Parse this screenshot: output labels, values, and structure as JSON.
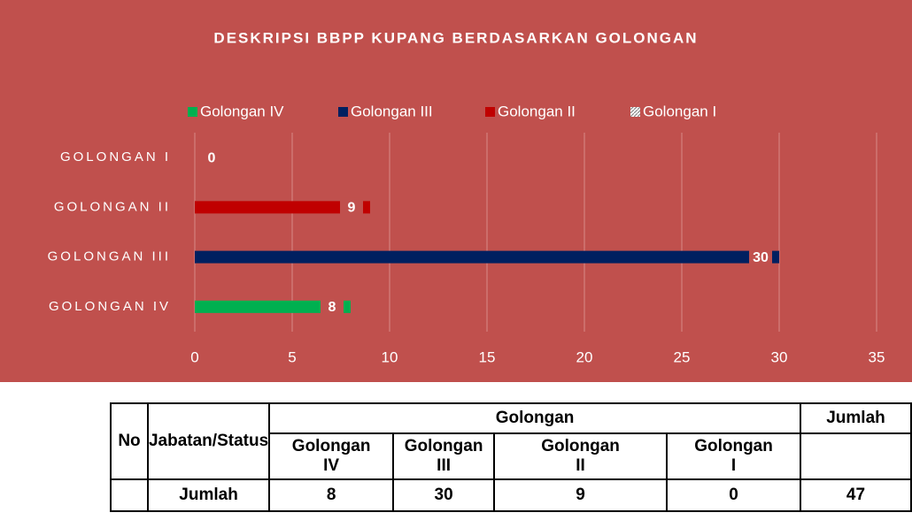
{
  "chart_data": {
    "type": "bar",
    "orientation": "horizontal",
    "title": "DESKRIPSI BBPP KUPANG BERDASARKAN GOLONGAN",
    "categories": [
      "GOLONGAN IV",
      "GOLONGAN III",
      "GOLONGAN II",
      "GOLONGAN I"
    ],
    "series": [
      {
        "name": "Golongan IV",
        "color": "#00b050",
        "values": [
          8,
          null,
          null,
          null
        ]
      },
      {
        "name": "Golongan III",
        "color": "#002060",
        "values": [
          null,
          30,
          null,
          null
        ]
      },
      {
        "name": "Golongan II",
        "color": "#c00000",
        "values": [
          null,
          null,
          9,
          null
        ]
      },
      {
        "name": "Golongan I",
        "color": "#d9d9d9",
        "pattern": true,
        "values": [
          null,
          null,
          null,
          0
        ]
      }
    ],
    "xlim": [
      0,
      35
    ],
    "xticks": [
      0,
      5,
      10,
      15,
      20,
      25,
      30,
      35
    ],
    "grid": true,
    "legend": "top"
  },
  "table": {
    "no": "No",
    "jabatan": "Jabatan/Status",
    "group": "Golongan",
    "total_header": "Jumlah",
    "columns": [
      [
        "Golongan",
        "IV"
      ],
      [
        "Golongan",
        "III"
      ],
      [
        "Golongan",
        "II"
      ],
      [
        "Golongan",
        "I"
      ]
    ],
    "row": {
      "label": "Jumlah",
      "values": [
        8,
        30,
        9,
        0
      ],
      "total": 47
    }
  }
}
